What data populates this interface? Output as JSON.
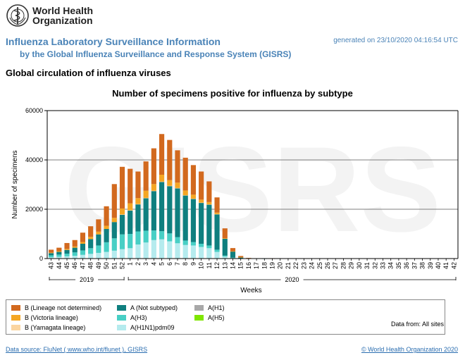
{
  "header": {
    "logo_line1": "World Health",
    "logo_line2": "Organization",
    "title": "Influenza Laboratory Surveillance Information",
    "subtitle": "by the Global Influenza Surveillance and Response System (GISRS)",
    "generated": "generated on 23/10/2020 04:16:54 UTC"
  },
  "section_title": "Global circulation of influenza viruses",
  "watermark": "GISRS",
  "footer": {
    "data_from": "Data from: All sites",
    "source": "Data source: FluNet ( www.who.int/flunet ), GISRS",
    "copyright": "© World Health Organization 2020"
  },
  "legend_items": [
    {
      "label": "B (Lineage not determined)",
      "color": "#d2691e"
    },
    {
      "label": "B (Victoria lineage)",
      "color": "#f5a623"
    },
    {
      "label": "B (Yamagata lineage)",
      "color": "#fbd5a0"
    },
    {
      "label": "A (Not subtyped)",
      "color": "#0f7f7f"
    },
    {
      "label": "A(H3)",
      "color": "#48cfc5"
    },
    {
      "label": "A(H1N1)pdm09",
      "color": "#b5ebee"
    },
    {
      "label": "A(H1)",
      "color": "#a8a8a8"
    },
    {
      "label": "A(H5)",
      "color": "#7fe600"
    }
  ],
  "chart_data": {
    "type": "bar",
    "stacked": true,
    "title": "Number of specimens positive for influenza by subtype",
    "xlabel": "Weeks",
    "ylabel": "Number of specimens",
    "ylim": [
      0,
      60000
    ],
    "yticks": [
      0,
      20000,
      40000,
      60000
    ],
    "grid": true,
    "year_groups": [
      {
        "label": "2019",
        "from": "43",
        "to": "52"
      },
      {
        "label": "2020",
        "from": "1",
        "to": "42"
      }
    ],
    "categories": [
      "43",
      "44",
      "45",
      "46",
      "47",
      "48",
      "49",
      "50",
      "51",
      "52",
      "1",
      "2",
      "3",
      "4",
      "5",
      "6",
      "7",
      "8",
      "9",
      "10",
      "11",
      "12",
      "13",
      "14",
      "15",
      "16",
      "17",
      "18",
      "19",
      "20",
      "21",
      "22",
      "23",
      "24",
      "25",
      "26",
      "27",
      "28",
      "29",
      "30",
      "31",
      "32",
      "33",
      "34",
      "35",
      "36",
      "37",
      "38",
      "39",
      "40",
      "41",
      "42"
    ],
    "series": [
      {
        "name": "A(H1N1)pdm09",
        "color": "#b5ebee",
        "values": [
          500,
          700,
          900,
          1100,
          1500,
          1900,
          2300,
          2700,
          3200,
          3800,
          4200,
          5700,
          6500,
          7500,
          7800,
          7000,
          6200,
          5500,
          5300,
          4700,
          4200,
          2700,
          800,
          250,
          80,
          30,
          10,
          5,
          0,
          0,
          0,
          0,
          0,
          0,
          0,
          0,
          0,
          0,
          0,
          0,
          0,
          0,
          0,
          0,
          0,
          0,
          0,
          0,
          0,
          0,
          0,
          0
        ]
      },
      {
        "name": "A(H3)",
        "color": "#48cfc5",
        "values": [
          800,
          900,
          1100,
          1400,
          1800,
          2300,
          3000,
          3900,
          5000,
          6000,
          5800,
          5300,
          4800,
          3900,
          3300,
          3200,
          2500,
          1800,
          1400,
          1300,
          1100,
          900,
          400,
          100,
          30,
          10,
          0,
          0,
          0,
          0,
          0,
          0,
          0,
          0,
          0,
          0,
          0,
          0,
          0,
          0,
          0,
          0,
          0,
          0,
          0,
          0,
          0,
          0,
          0,
          0,
          0,
          0
        ]
      },
      {
        "name": "A (Not subtyped)",
        "color": "#0f7f7f",
        "values": [
          900,
          1100,
          1500,
          1900,
          2700,
          3700,
          4500,
          5400,
          6600,
          8000,
          9500,
          11000,
          13200,
          16000,
          20000,
          19200,
          19800,
          18300,
          17500,
          16600,
          16600,
          14400,
          6800,
          2500,
          400,
          60,
          20,
          10,
          0,
          0,
          0,
          0,
          0,
          0,
          0,
          0,
          0,
          0,
          0,
          0,
          0,
          0,
          0,
          0,
          0,
          0,
          0,
          0,
          0,
          0,
          0,
          0
        ]
      },
      {
        "name": "B (Yamagata lineage)",
        "color": "#fbd5a0",
        "values": [
          0,
          0,
          0,
          0,
          0,
          0,
          0,
          0,
          0,
          100,
          100,
          100,
          100,
          100,
          100,
          100,
          100,
          100,
          100,
          100,
          100,
          50,
          0,
          0,
          0,
          0,
          0,
          0,
          0,
          0,
          0,
          0,
          0,
          0,
          0,
          0,
          0,
          0,
          0,
          0,
          0,
          0,
          0,
          0,
          0,
          0,
          0,
          0,
          0,
          0,
          0,
          0
        ]
      },
      {
        "name": "B (Victoria lineage)",
        "color": "#f5a623",
        "values": [
          200,
          300,
          400,
          500,
          700,
          900,
          1100,
          1300,
          1700,
          2400,
          2800,
          2400,
          2900,
          2700,
          2800,
          2300,
          2200,
          1900,
          1600,
          1200,
          900,
          600,
          250,
          100,
          30,
          10,
          0,
          0,
          0,
          0,
          0,
          0,
          0,
          0,
          0,
          0,
          0,
          0,
          0,
          0,
          0,
          0,
          0,
          0,
          0,
          0,
          0,
          0,
          0,
          0,
          0,
          0
        ]
      },
      {
        "name": "B (Lineage not determined)",
        "color": "#d2691e",
        "values": [
          1200,
          1400,
          2400,
          2600,
          3800,
          4300,
          5000,
          7900,
          13700,
          16900,
          14000,
          10800,
          11900,
          14500,
          16500,
          16300,
          13100,
          13300,
          12000,
          11400,
          8400,
          6150,
          4000,
          1300,
          500,
          150,
          50,
          20,
          10,
          0,
          0,
          0,
          0,
          0,
          0,
          0,
          0,
          0,
          0,
          0,
          0,
          0,
          0,
          0,
          0,
          0,
          0,
          0,
          0,
          0,
          0,
          0
        ]
      }
    ]
  }
}
